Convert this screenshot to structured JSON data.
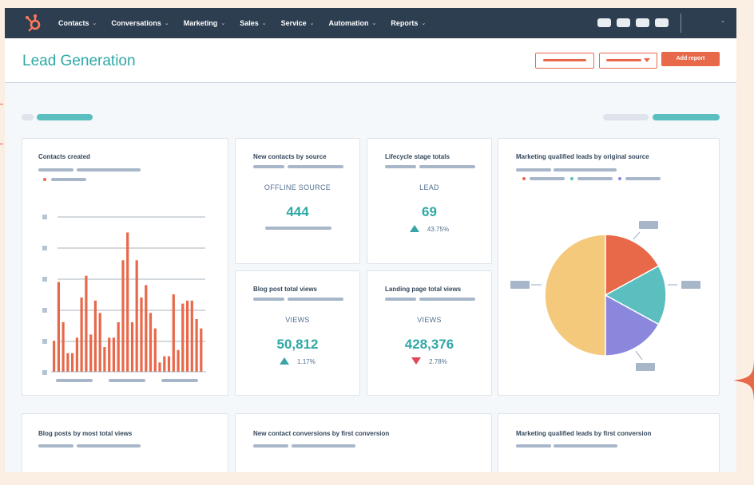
{
  "nav": {
    "items": [
      {
        "label": "Contacts",
        "chevron": "⌄"
      },
      {
        "label": "Conversations",
        "chevron": "⌄"
      },
      {
        "label": "Marketing",
        "chevron": "⌄"
      },
      {
        "label": "Sales",
        "chevron": "⌄"
      },
      {
        "label": "Service",
        "chevron": "⌄"
      },
      {
        "label": "Automation",
        "chevron": "⌄"
      },
      {
        "label": "Reports",
        "chevron": "⌄"
      }
    ],
    "caret": "⌄",
    "logo_icon": "hubspot-sprocket-icon"
  },
  "header": {
    "title": "Lead Generation",
    "add_report_label": "Add report"
  },
  "cards": {
    "contacts_created": {
      "title": "Contacts created"
    },
    "new_contacts": {
      "title": "New contacts by source",
      "label": "OFFLINE SOURCE",
      "value": "444"
    },
    "lifecycle": {
      "title": "Lifecycle stage totals",
      "label": "LEAD",
      "value": "69",
      "delta": "43.75%",
      "direction": "up"
    },
    "mql_source": {
      "title": "Marketing qualified leads by original source"
    },
    "blog_views": {
      "title": "Blog post total views",
      "label": "VIEWS",
      "value": "50,812",
      "delta": "1.17%",
      "direction": "up"
    },
    "landing_views": {
      "title": "Landing page total views",
      "label": "VIEWS",
      "value": "428,376",
      "delta": "2.78%",
      "direction": "down"
    },
    "blog_posts": {
      "title": "Blog posts by most total views"
    },
    "new_conversions": {
      "title": "New contact conversions by first conversion"
    },
    "mql_conversion": {
      "title": "Marketing qualified leads by first conversion"
    }
  },
  "colors": {
    "accent": "#e8684a",
    "teal": "#2fa8a6",
    "nav_bg": "#2d3e50",
    "pie": [
      "#f5c97b",
      "#e8684a",
      "#5bbfbf",
      "#8b87dc"
    ]
  },
  "chart_data": [
    {
      "type": "bar",
      "values": [
        10,
        29,
        16,
        6,
        6,
        11,
        24,
        31,
        12,
        23,
        19,
        8,
        11,
        11,
        16,
        36,
        45,
        16,
        36,
        24,
        28,
        19,
        14,
        3,
        5,
        5,
        25,
        7,
        22,
        23,
        23,
        17,
        14
      ],
      "ylim": [
        0,
        50
      ]
    },
    {
      "type": "pie",
      "values": [
        50,
        17,
        16,
        17
      ],
      "colors": [
        "#f5c97b",
        "#e8684a",
        "#5bbfbf",
        "#8b87dc"
      ]
    }
  ]
}
